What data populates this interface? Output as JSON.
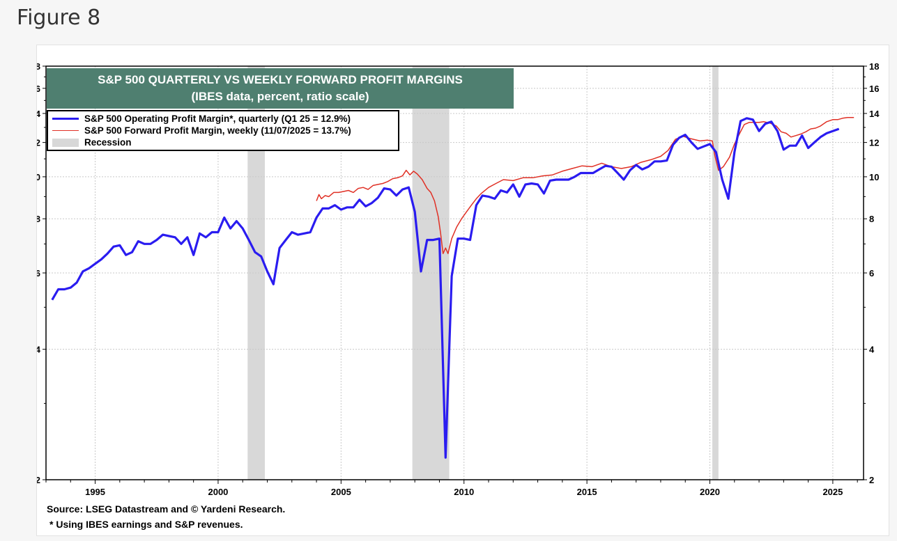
{
  "page": {
    "heading": "Figure 8"
  },
  "chart_data": {
    "type": "line",
    "title": "S&P 500 QUARTERLY VS WEEKLY FORWARD PROFIT MARGINS",
    "subtitle": "(IBES data, percent, ratio scale)",
    "y_scale": "log",
    "ylim": [
      2,
      18
    ],
    "y_ticks": [
      2,
      4,
      6,
      8,
      10,
      12,
      14,
      16,
      18
    ],
    "xlim": [
      1993.0,
      2026.25
    ],
    "x_ticks": [
      1995,
      2000,
      2005,
      2010,
      2015,
      2020,
      2025
    ],
    "grid": true,
    "legend_position": "top-left",
    "legend": [
      {
        "label": "S&P 500 Operating Profit Margin*, quarterly (Q1 25 = 12.9%)",
        "color": "#2a1cf0",
        "kind": "line-thick"
      },
      {
        "label": "S&P 500 Forward Profit Margin, weekly (11/07/2025 = 13.7%)",
        "color": "#e03025",
        "kind": "line-thin"
      },
      {
        "label": "Recession",
        "color": "#d8d8d8",
        "kind": "box"
      }
    ],
    "recessions": [
      {
        "start": 2001.2,
        "end": 2001.9
      },
      {
        "start": 2007.9,
        "end": 2009.4
      },
      {
        "start": 2020.1,
        "end": 2020.35
      }
    ],
    "series": [
      {
        "name": "S&P 500 Operating Profit Margin*, quarterly (Q1 25 = 12.9%)",
        "color": "#2a1cf0",
        "points": [
          [
            1993.25,
            5.2
          ],
          [
            1993.5,
            5.5
          ],
          [
            1993.75,
            5.5
          ],
          [
            1994.0,
            5.55
          ],
          [
            1994.25,
            5.7
          ],
          [
            1994.5,
            6.05
          ],
          [
            1994.75,
            6.15
          ],
          [
            1995.0,
            6.3
          ],
          [
            1995.25,
            6.45
          ],
          [
            1995.5,
            6.65
          ],
          [
            1995.75,
            6.9
          ],
          [
            1996.0,
            6.95
          ],
          [
            1996.25,
            6.6
          ],
          [
            1996.5,
            6.7
          ],
          [
            1996.75,
            7.1
          ],
          [
            1997.0,
            7.0
          ],
          [
            1997.25,
            7.0
          ],
          [
            1997.5,
            7.15
          ],
          [
            1997.75,
            7.35
          ],
          [
            1998.0,
            7.3
          ],
          [
            1998.25,
            7.25
          ],
          [
            1998.5,
            7.0
          ],
          [
            1998.75,
            7.25
          ],
          [
            1999.0,
            6.6
          ],
          [
            1999.25,
            7.4
          ],
          [
            1999.5,
            7.25
          ],
          [
            1999.75,
            7.45
          ],
          [
            2000.0,
            7.45
          ],
          [
            2000.25,
            8.05
          ],
          [
            2000.5,
            7.6
          ],
          [
            2000.75,
            7.9
          ],
          [
            2001.0,
            7.6
          ],
          [
            2001.25,
            7.15
          ],
          [
            2001.5,
            6.7
          ],
          [
            2001.75,
            6.55
          ],
          [
            2002.0,
            6.05
          ],
          [
            2002.25,
            5.65
          ],
          [
            2002.5,
            6.85
          ],
          [
            2002.75,
            7.15
          ],
          [
            2003.0,
            7.45
          ],
          [
            2003.25,
            7.35
          ],
          [
            2003.5,
            7.4
          ],
          [
            2003.75,
            7.45
          ],
          [
            2004.0,
            8.05
          ],
          [
            2004.25,
            8.45
          ],
          [
            2004.5,
            8.45
          ],
          [
            2004.75,
            8.6
          ],
          [
            2005.0,
            8.4
          ],
          [
            2005.25,
            8.5
          ],
          [
            2005.5,
            8.5
          ],
          [
            2005.75,
            8.85
          ],
          [
            2006.0,
            8.55
          ],
          [
            2006.25,
            8.7
          ],
          [
            2006.5,
            8.95
          ],
          [
            2006.75,
            9.4
          ],
          [
            2007.0,
            9.35
          ],
          [
            2007.25,
            9.05
          ],
          [
            2007.5,
            9.35
          ],
          [
            2007.75,
            9.45
          ],
          [
            2008.0,
            8.3
          ],
          [
            2008.25,
            6.05
          ],
          [
            2008.5,
            7.15
          ],
          [
            2008.75,
            7.15
          ],
          [
            2009.0,
            7.2
          ],
          [
            2009.25,
            2.25
          ],
          [
            2009.5,
            5.9
          ],
          [
            2009.75,
            7.2
          ],
          [
            2010.0,
            7.2
          ],
          [
            2010.25,
            7.15
          ],
          [
            2010.5,
            8.6
          ],
          [
            2010.75,
            9.05
          ],
          [
            2011.0,
            9.0
          ],
          [
            2011.25,
            8.9
          ],
          [
            2011.5,
            9.3
          ],
          [
            2011.75,
            9.2
          ],
          [
            2012.0,
            9.6
          ],
          [
            2012.25,
            9.0
          ],
          [
            2012.5,
            9.6
          ],
          [
            2012.75,
            9.65
          ],
          [
            2013.0,
            9.6
          ],
          [
            2013.25,
            9.15
          ],
          [
            2013.5,
            9.8
          ],
          [
            2013.75,
            9.85
          ],
          [
            2014.0,
            9.85
          ],
          [
            2014.25,
            9.85
          ],
          [
            2014.5,
            10.0
          ],
          [
            2014.75,
            10.2
          ],
          [
            2015.0,
            10.2
          ],
          [
            2015.25,
            10.2
          ],
          [
            2015.5,
            10.4
          ],
          [
            2015.75,
            10.6
          ],
          [
            2016.0,
            10.55
          ],
          [
            2016.25,
            10.2
          ],
          [
            2016.5,
            9.85
          ],
          [
            2016.75,
            10.35
          ],
          [
            2017.0,
            10.65
          ],
          [
            2017.25,
            10.4
          ],
          [
            2017.5,
            10.55
          ],
          [
            2017.75,
            10.85
          ],
          [
            2018.0,
            10.85
          ],
          [
            2018.25,
            10.9
          ],
          [
            2018.5,
            11.85
          ],
          [
            2018.75,
            12.3
          ],
          [
            2019.0,
            12.5
          ],
          [
            2019.25,
            12.0
          ],
          [
            2019.5,
            11.6
          ],
          [
            2019.75,
            11.75
          ],
          [
            2020.0,
            11.9
          ],
          [
            2020.25,
            11.4
          ],
          [
            2020.5,
            9.85
          ],
          [
            2020.75,
            8.9
          ],
          [
            2021.0,
            11.4
          ],
          [
            2021.25,
            13.45
          ],
          [
            2021.5,
            13.65
          ],
          [
            2021.75,
            13.55
          ],
          [
            2022.0,
            12.75
          ],
          [
            2022.25,
            13.25
          ],
          [
            2022.5,
            13.4
          ],
          [
            2022.75,
            12.75
          ],
          [
            2023.0,
            11.55
          ],
          [
            2023.25,
            11.8
          ],
          [
            2023.5,
            11.8
          ],
          [
            2023.75,
            12.45
          ],
          [
            2024.0,
            11.65
          ],
          [
            2024.25,
            12.0
          ],
          [
            2024.5,
            12.35
          ],
          [
            2024.75,
            12.6
          ],
          [
            2025.0,
            12.75
          ],
          [
            2025.25,
            12.9
          ]
        ]
      },
      {
        "name": "S&P 500 Forward Profit Margin, weekly (11/07/2025 = 13.7%)",
        "color": "#e03025",
        "points": [
          [
            2004.0,
            8.8
          ],
          [
            2004.1,
            9.1
          ],
          [
            2004.2,
            8.9
          ],
          [
            2004.35,
            9.05
          ],
          [
            2004.5,
            9.0
          ],
          [
            2004.7,
            9.2
          ],
          [
            2004.9,
            9.2
          ],
          [
            2005.1,
            9.25
          ],
          [
            2005.3,
            9.3
          ],
          [
            2005.5,
            9.2
          ],
          [
            2005.7,
            9.4
          ],
          [
            2005.9,
            9.45
          ],
          [
            2006.1,
            9.35
          ],
          [
            2006.3,
            9.55
          ],
          [
            2006.5,
            9.6
          ],
          [
            2006.7,
            9.65
          ],
          [
            2006.9,
            9.75
          ],
          [
            2007.1,
            9.9
          ],
          [
            2007.3,
            9.95
          ],
          [
            2007.5,
            10.05
          ],
          [
            2007.65,
            10.35
          ],
          [
            2007.8,
            10.1
          ],
          [
            2007.95,
            10.3
          ],
          [
            2008.1,
            10.15
          ],
          [
            2008.3,
            9.85
          ],
          [
            2008.5,
            9.4
          ],
          [
            2008.65,
            9.2
          ],
          [
            2008.8,
            8.8
          ],
          [
            2008.95,
            8.1
          ],
          [
            2009.05,
            7.4
          ],
          [
            2009.15,
            6.65
          ],
          [
            2009.25,
            6.85
          ],
          [
            2009.35,
            6.65
          ],
          [
            2009.5,
            7.2
          ],
          [
            2009.7,
            7.65
          ],
          [
            2009.9,
            8.0
          ],
          [
            2010.1,
            8.3
          ],
          [
            2010.3,
            8.6
          ],
          [
            2010.5,
            8.9
          ],
          [
            2010.7,
            9.15
          ],
          [
            2011.0,
            9.45
          ],
          [
            2011.3,
            9.65
          ],
          [
            2011.6,
            9.85
          ],
          [
            2012.0,
            9.8
          ],
          [
            2012.4,
            9.95
          ],
          [
            2012.8,
            9.95
          ],
          [
            2013.2,
            10.05
          ],
          [
            2013.6,
            10.1
          ],
          [
            2014.0,
            10.3
          ],
          [
            2014.4,
            10.45
          ],
          [
            2014.8,
            10.6
          ],
          [
            2015.2,
            10.55
          ],
          [
            2015.6,
            10.75
          ],
          [
            2016.0,
            10.55
          ],
          [
            2016.4,
            10.45
          ],
          [
            2016.8,
            10.55
          ],
          [
            2017.2,
            10.8
          ],
          [
            2017.6,
            10.95
          ],
          [
            2018.0,
            11.15
          ],
          [
            2018.3,
            11.5
          ],
          [
            2018.6,
            12.2
          ],
          [
            2018.9,
            12.4
          ],
          [
            2019.2,
            12.25
          ],
          [
            2019.6,
            12.1
          ],
          [
            2019.9,
            12.15
          ],
          [
            2020.1,
            12.1
          ],
          [
            2020.2,
            11.2
          ],
          [
            2020.35,
            10.35
          ],
          [
            2020.55,
            10.55
          ],
          [
            2020.8,
            11.1
          ],
          [
            2021.0,
            11.9
          ],
          [
            2021.2,
            12.55
          ],
          [
            2021.4,
            13.2
          ],
          [
            2021.6,
            13.35
          ],
          [
            2021.8,
            13.35
          ],
          [
            2022.0,
            13.35
          ],
          [
            2022.2,
            13.4
          ],
          [
            2022.45,
            13.3
          ],
          [
            2022.7,
            13.1
          ],
          [
            2022.9,
            12.7
          ],
          [
            2023.1,
            12.6
          ],
          [
            2023.3,
            12.35
          ],
          [
            2023.5,
            12.45
          ],
          [
            2023.7,
            12.55
          ],
          [
            2023.9,
            12.7
          ],
          [
            2024.1,
            12.9
          ],
          [
            2024.3,
            12.95
          ],
          [
            2024.5,
            13.1
          ],
          [
            2024.75,
            13.4
          ],
          [
            2025.0,
            13.55
          ],
          [
            2025.2,
            13.55
          ],
          [
            2025.4,
            13.65
          ],
          [
            2025.6,
            13.7
          ],
          [
            2025.86,
            13.7
          ]
        ]
      }
    ]
  },
  "notes": {
    "source": "Source: LSEG Datastream and © Yardeni Research.",
    "footnote": "* Using IBES earnings and S&P revenues."
  }
}
